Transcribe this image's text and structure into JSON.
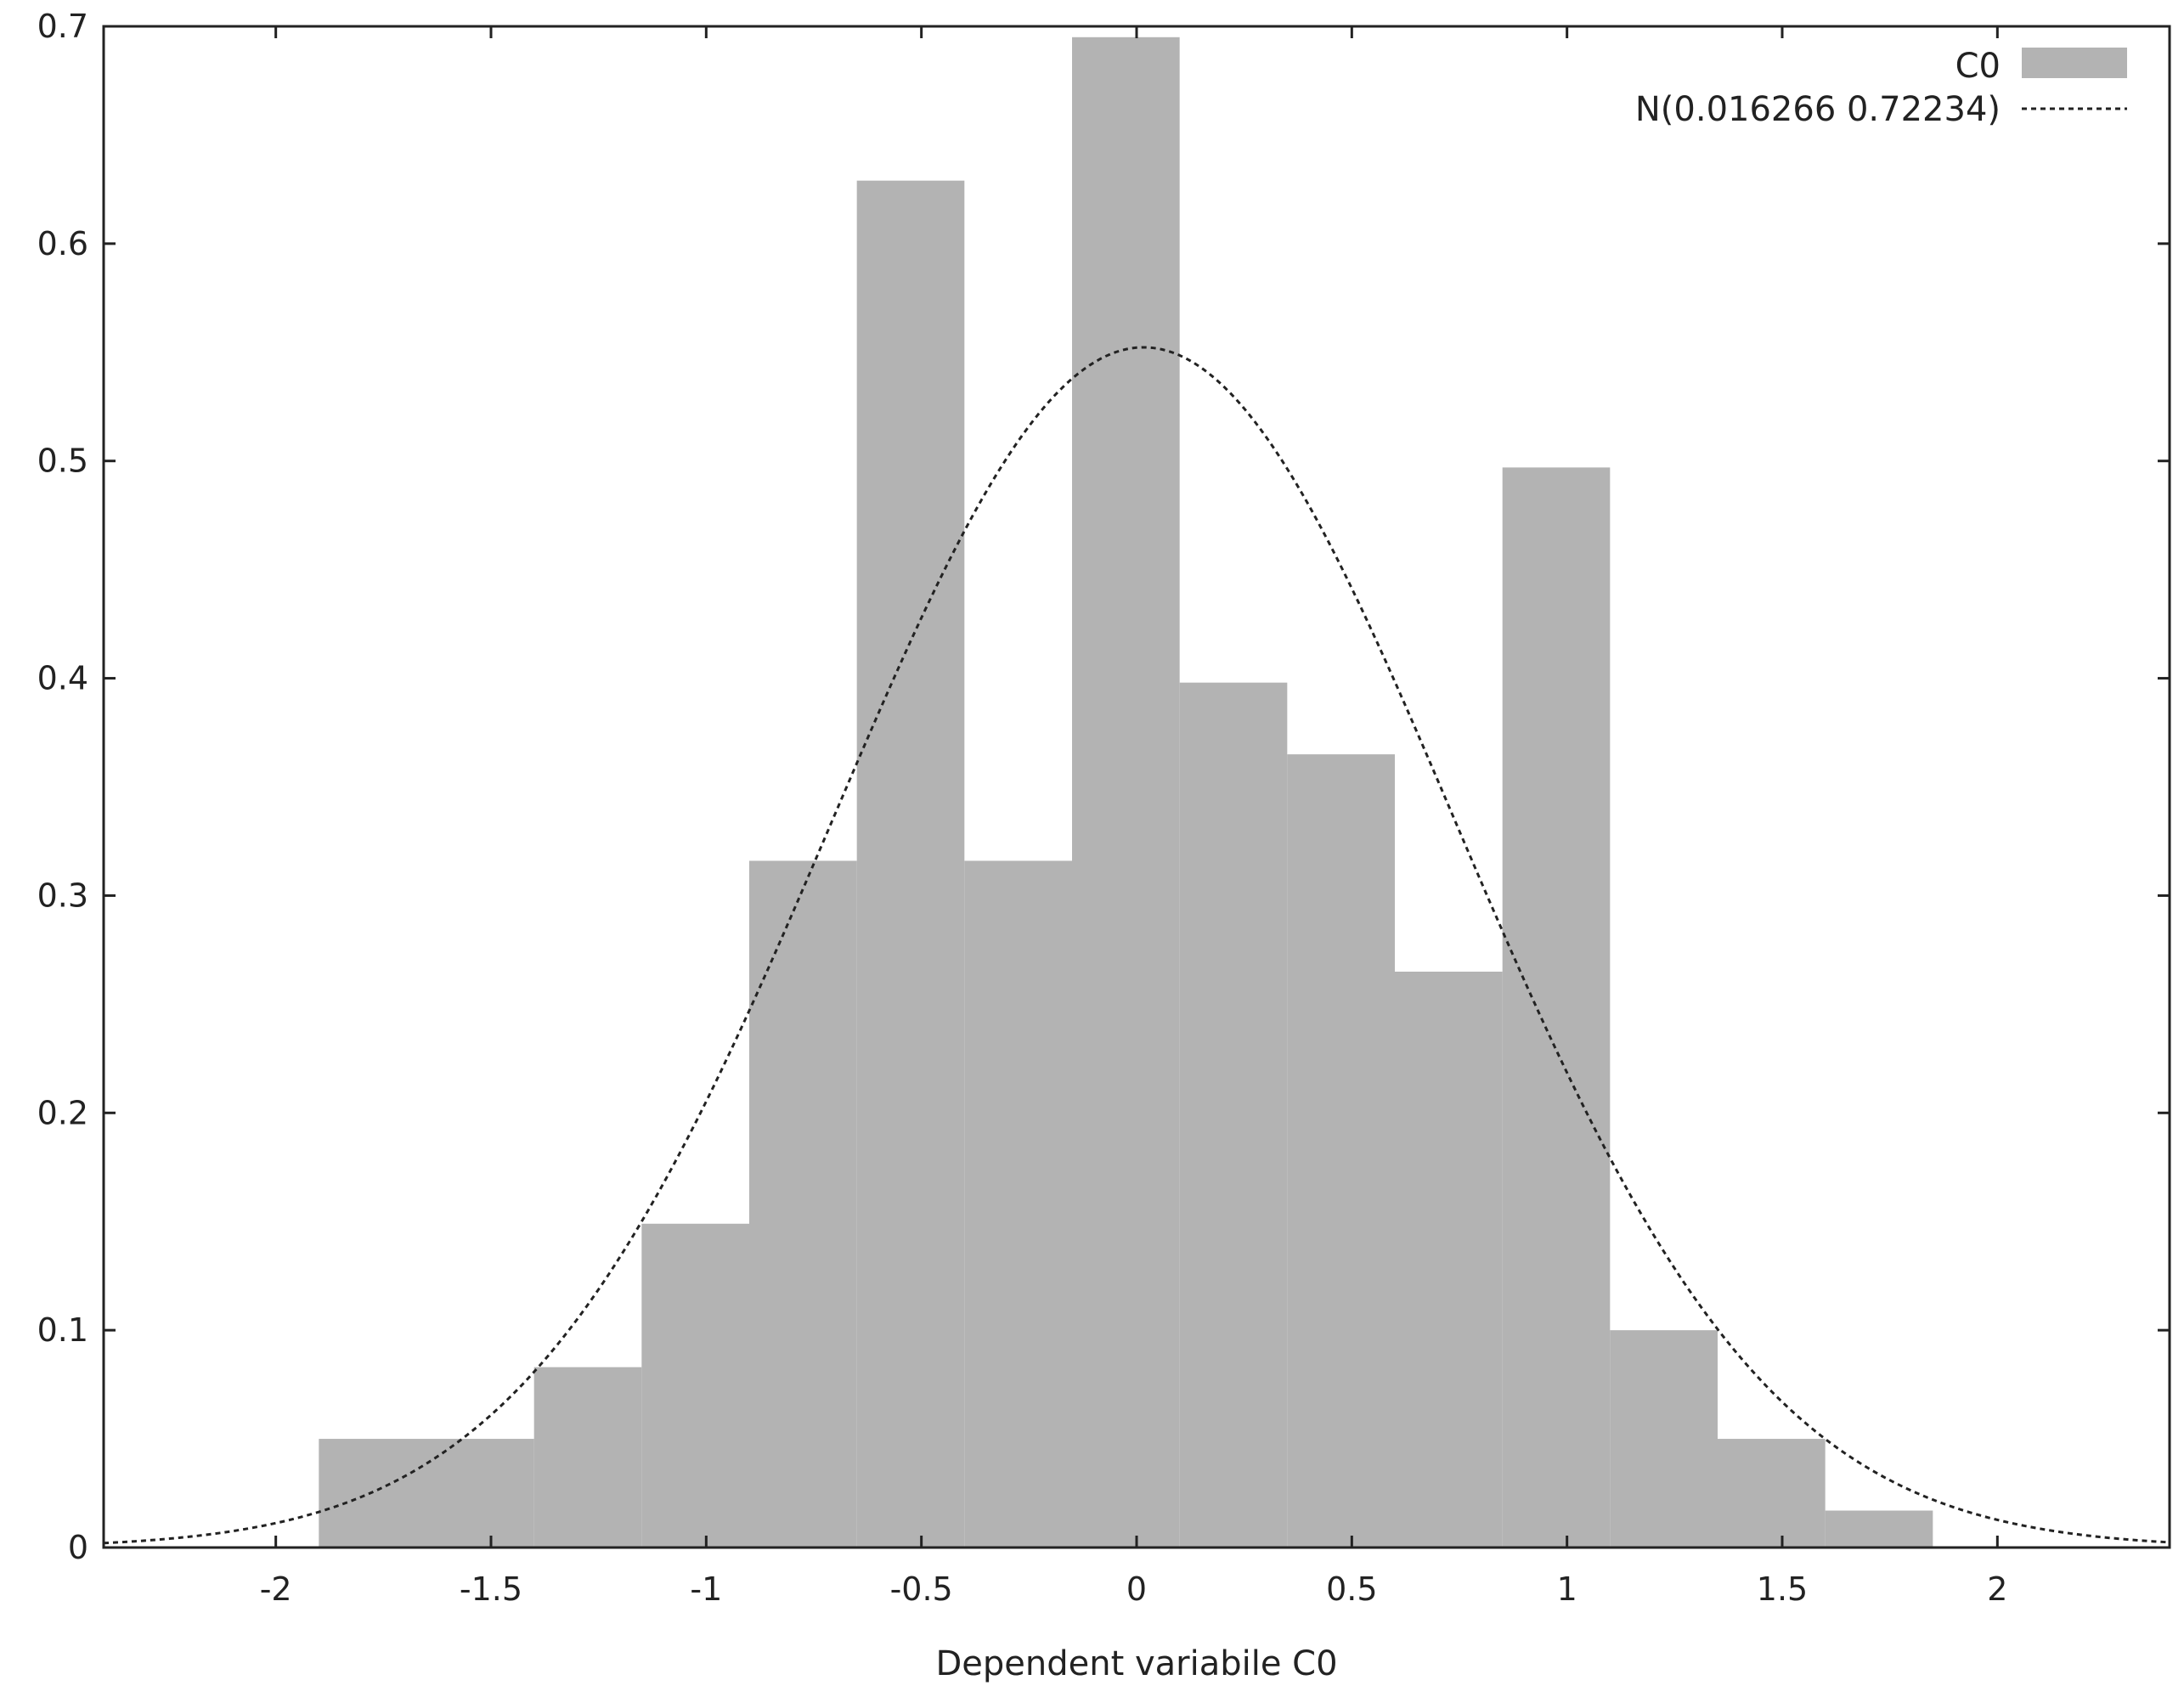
{
  "chart_data": {
    "type": "bar",
    "title": "",
    "xlabel": "Dependent variabile C0",
    "ylabel": "",
    "xlim": [
      -2.4,
      2.4
    ],
    "ylim": [
      0,
      0.7
    ],
    "grid": false,
    "legend_position": "top-right",
    "x_ticks": [
      -2,
      -1.5,
      -1,
      -0.5,
      0,
      0.5,
      1,
      1.5,
      2
    ],
    "x_tick_labels": [
      "-2",
      "-1.5",
      "-1",
      "-0.5",
      "0",
      "0.5",
      "1",
      "1.5",
      "2"
    ],
    "y_ticks": [
      0,
      0.1,
      0.2,
      0.3,
      0.4,
      0.5,
      0.6,
      0.7
    ],
    "y_tick_labels": [
      "0",
      "0.1",
      "0.2",
      "0.3",
      "0.4",
      "0.5",
      "0.6",
      "0.7"
    ],
    "bin_edges": [
      -1.9,
      -1.4,
      -1.15,
      -0.9,
      -0.65,
      -0.4,
      -0.15,
      0.1,
      0.35,
      0.6,
      0.85,
      1.1,
      1.35,
      1.6,
      1.85
    ],
    "values": [
      0.05,
      0.083,
      0.149,
      0.316,
      0.629,
      0.316,
      0.695,
      0.398,
      0.365,
      0.265,
      0.497,
      0.1,
      0.05,
      0.017
    ],
    "series": [
      {
        "name": "C0",
        "kind": "histogram",
        "color": "#b3b3b3"
      },
      {
        "name": "N(0.016266 0.72234)",
        "kind": "normal-density",
        "mean": 0.016266,
        "sd": 0.72234,
        "color": "#222222"
      }
    ]
  }
}
